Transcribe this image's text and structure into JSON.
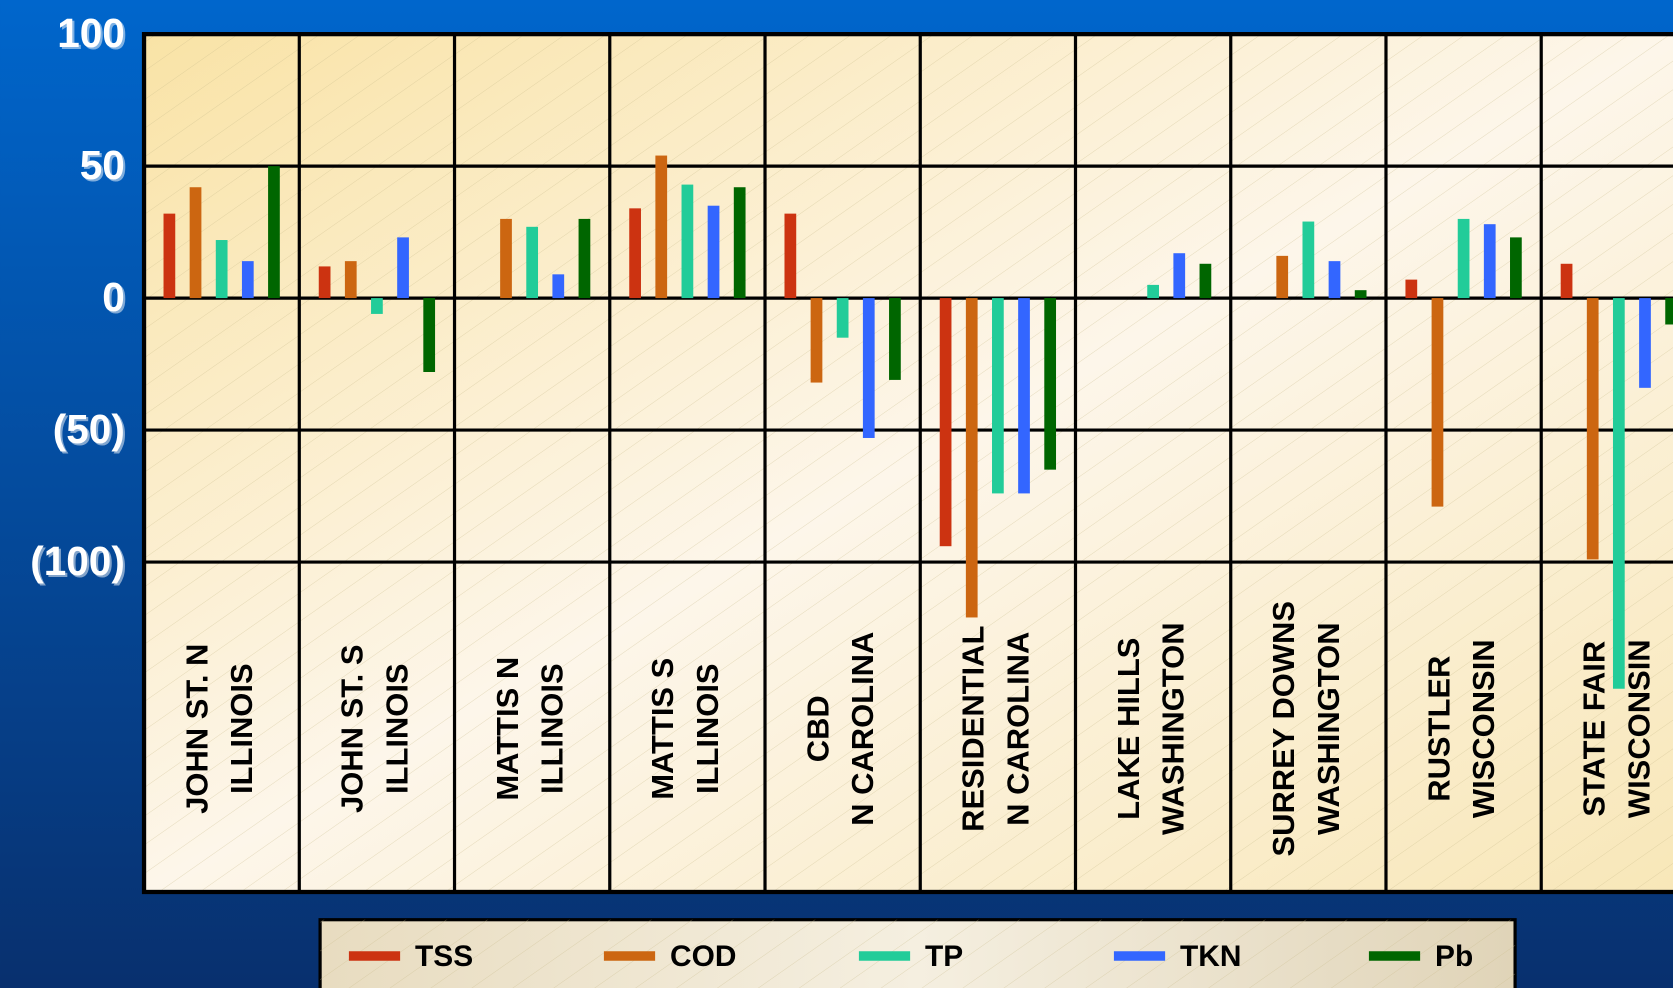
{
  "chart_data": {
    "type": "bar",
    "categories": [
      [
        "JOHN ST. N",
        "ILLINOIS"
      ],
      [
        "JOHN ST. S",
        "ILLINOIS"
      ],
      [
        "MATTIS N",
        "ILLINOIS"
      ],
      [
        "MATTIS S",
        "ILLINOIS"
      ],
      [
        "CBD",
        "N CAROLINA"
      ],
      [
        "RESIDENTIAL",
        "N CAROLINA"
      ],
      [
        "LAKE HILLS",
        "WASHINGTON"
      ],
      [
        "SURREY DOWNS",
        "WASHINGTON"
      ],
      [
        "RUSTLER",
        "WISCONSIN"
      ],
      [
        "STATE FAIR",
        "WISCONSIN"
      ]
    ],
    "series": [
      {
        "name": "TSS",
        "color": "#cc3311",
        "values": [
          32,
          12,
          null,
          34,
          32,
          -94,
          null,
          null,
          7,
          13
        ]
      },
      {
        "name": "COD",
        "color": "#cc6611",
        "values": [
          42,
          14,
          30,
          54,
          -32,
          -121,
          null,
          16,
          -79,
          -99
        ]
      },
      {
        "name": "TP",
        "color": "#22cc99",
        "values": [
          22,
          -6,
          27,
          43,
          -15,
          -74,
          5,
          29,
          30,
          -148
        ]
      },
      {
        "name": "TKN",
        "color": "#3366ff",
        "values": [
          14,
          23,
          9,
          35,
          -53,
          -74,
          17,
          14,
          28,
          -34
        ]
      },
      {
        "name": "Pb",
        "color": "#006600",
        "values": [
          50,
          -28,
          30,
          42,
          -31,
          -65,
          13,
          3,
          23,
          -10
        ]
      }
    ],
    "ylim": [
      -225,
      100
    ],
    "yticks": [
      100,
      50,
      0,
      {
        "value": -50,
        "label": "(50)"
      },
      {
        "value": -100,
        "label": "(100)"
      }
    ],
    "grid": true
  }
}
